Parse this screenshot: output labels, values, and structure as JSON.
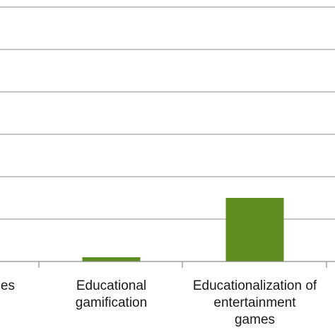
{
  "chart_data": {
    "type": "bar",
    "title": "",
    "xlabel": "",
    "ylabel": "",
    "categories": [
      [
        "...es"
      ],
      [
        "Educational",
        "gamification"
      ],
      [
        "Educationalization of",
        "entertainment",
        "games"
      ]
    ],
    "values": [
      null,
      1,
      15
    ],
    "ylim": [
      0,
      60
    ],
    "grid": true,
    "bar_color": "#5e8c1f"
  }
}
